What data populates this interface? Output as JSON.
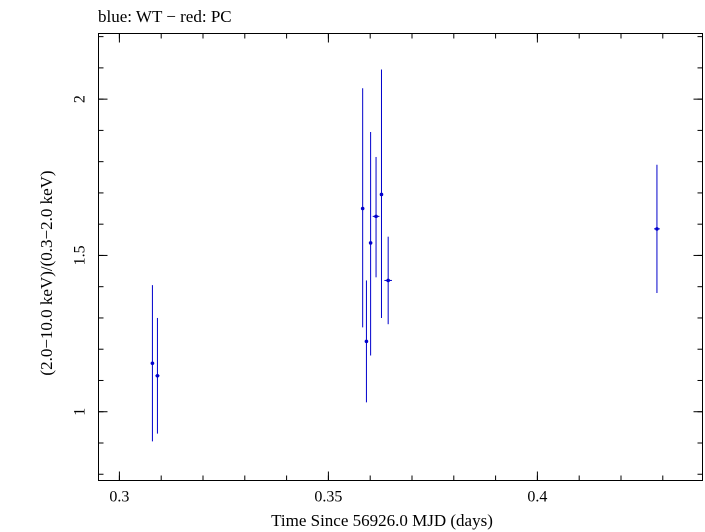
{
  "chart_data": {
    "type": "scatter",
    "title": "blue: WT − red: PC",
    "xlabel": "Time Since 56926.0 MJD (days)",
    "ylabel": "(2.0−10.0 keV)/(0.3−2.0 keV)",
    "xlim": [
      0.295,
      0.4395
    ],
    "ylim": [
      0.78,
      2.21
    ],
    "x_ticks": [
      {
        "value": 0.3,
        "label": "0.3"
      },
      {
        "value": 0.35,
        "label": "0.35"
      },
      {
        "value": 0.4,
        "label": "0.4"
      }
    ],
    "x_minor_step": 0.01,
    "y_ticks": [
      {
        "value": 1.0,
        "label": "1"
      },
      {
        "value": 1.5,
        "label": "1.5"
      },
      {
        "value": 2.0,
        "label": "2"
      }
    ],
    "y_minor_step": 0.1,
    "grid": false,
    "series_color": "#0000cc",
    "series": [
      {
        "points": [
          {
            "x": 0.3079,
            "y": 1.155,
            "xerr": 0.0004,
            "ylo": 0.905,
            "yhi": 1.405
          },
          {
            "x": 0.3091,
            "y": 1.115,
            "xerr": 0.0005,
            "ylo": 0.93,
            "yhi": 1.3
          },
          {
            "x": 0.3582,
            "y": 1.65,
            "xerr": 0.0002,
            "ylo": 1.27,
            "yhi": 2.035
          },
          {
            "x": 0.3591,
            "y": 1.225,
            "xerr": 0.0003,
            "ylo": 1.03,
            "yhi": 1.42
          },
          {
            "x": 0.3601,
            "y": 1.54,
            "xerr": 0.0002,
            "ylo": 1.18,
            "yhi": 1.895
          },
          {
            "x": 0.3614,
            "y": 1.625,
            "xerr": 0.0008,
            "ylo": 1.43,
            "yhi": 1.815
          },
          {
            "x": 0.3627,
            "y": 1.695,
            "xerr": 0.0003,
            "ylo": 1.3,
            "yhi": 2.095
          },
          {
            "x": 0.3643,
            "y": 1.42,
            "xerr": 0.0009,
            "ylo": 1.28,
            "yhi": 1.56
          },
          {
            "x": 0.4286,
            "y": 1.585,
            "xerr": 0.0007,
            "ylo": 1.38,
            "yhi": 1.79
          }
        ]
      }
    ]
  }
}
